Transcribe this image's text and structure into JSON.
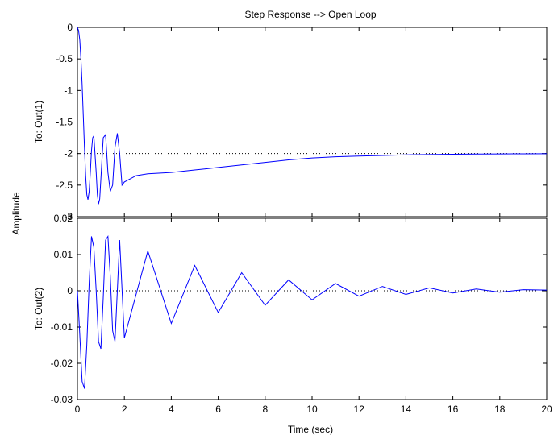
{
  "chart_data": {
    "type": "line",
    "title": "Step Response --> Open Loop",
    "xlabel": "Time (sec)",
    "ylabel": "Amplitude",
    "xlim": [
      0,
      20
    ],
    "xticks": [
      "0",
      "2",
      "4",
      "6",
      "8",
      "10",
      "12",
      "14",
      "16",
      "18",
      "20"
    ],
    "grid": false,
    "line_color": "#0000ff",
    "reference_line_color": "#000000",
    "subplots": [
      {
        "ylabel": "To: Out(1)",
        "ylim": [
          -3,
          0
        ],
        "yticks": [
          "0",
          "-0.5",
          "-1",
          "-1.5",
          "-2",
          "-2.5",
          "-3"
        ],
        "final_value": -2,
        "series": [
          {
            "x": [
              0,
              0.05,
              0.1,
              0.15,
              0.2,
              0.25,
              0.3,
              0.35,
              0.4,
              0.45,
              0.5,
              0.55,
              0.6,
              0.65,
              0.7,
              0.8,
              0.85,
              0.9,
              0.95,
              1.0,
              1.1,
              1.2,
              1.3,
              1.4,
              1.5,
              1.6,
              1.7,
              1.8,
              1.9,
              2.0,
              2.5,
              3.0,
              4.0,
              5.0,
              6.0,
              7.0,
              8.0,
              9.0,
              10.0,
              11.0,
              12.0,
              13.0,
              14.0,
              15.0,
              16.0,
              17.0,
              18.0,
              19.0,
              20.0
            ],
            "y": [
              0,
              -0.05,
              -0.2,
              -0.5,
              -0.9,
              -1.4,
              -1.9,
              -2.35,
              -2.65,
              -2.73,
              -2.6,
              -2.3,
              -1.95,
              -1.75,
              -1.72,
              -2.3,
              -2.65,
              -2.8,
              -2.72,
              -2.4,
              -1.75,
              -1.7,
              -2.3,
              -2.6,
              -2.5,
              -1.9,
              -1.68,
              -2.0,
              -2.5,
              -2.45,
              -2.35,
              -2.32,
              -2.3,
              -2.26,
              -2.22,
              -2.18,
              -2.14,
              -2.1,
              -2.07,
              -2.05,
              -2.04,
              -2.03,
              -2.02,
              -2.015,
              -2.01,
              -2.008,
              -2.006,
              -2.004,
              -2.003
            ]
          }
        ]
      },
      {
        "ylabel": "To: Out(2)",
        "ylim": [
          -0.03,
          0.02
        ],
        "yticks": [
          "0.02",
          "0.01",
          "0",
          "-0.01",
          "-0.02",
          "-0.03"
        ],
        "final_value": 0,
        "series": [
          {
            "x": [
              0,
              0.1,
              0.2,
              0.3,
              0.4,
              0.5,
              0.6,
              0.7,
              0.8,
              0.9,
              1.0,
              1.1,
              1.2,
              1.3,
              1.4,
              1.5,
              1.6,
              1.8,
              2.0,
              3.0,
              4.0,
              5.0,
              6.0,
              7.0,
              8.0,
              9.0,
              10.0,
              11.0,
              12.0,
              13.0,
              14.0,
              15.0,
              16.0,
              17.0,
              18.0,
              19.0,
              20.0
            ],
            "y": [
              0,
              -0.012,
              -0.025,
              -0.027,
              -0.015,
              0.002,
              0.015,
              0.012,
              0.0,
              -0.014,
              -0.016,
              -0.002,
              0.014,
              0.015,
              0.004,
              -0.011,
              -0.014,
              0.014,
              -0.013,
              0.011,
              -0.009,
              0.007,
              -0.006,
              0.005,
              -0.004,
              0.003,
              -0.0025,
              0.002,
              -0.0015,
              0.0012,
              -0.001,
              0.0008,
              -0.0006,
              0.0005,
              -0.0004,
              0.0003,
              0.0002
            ]
          }
        ]
      }
    ]
  }
}
